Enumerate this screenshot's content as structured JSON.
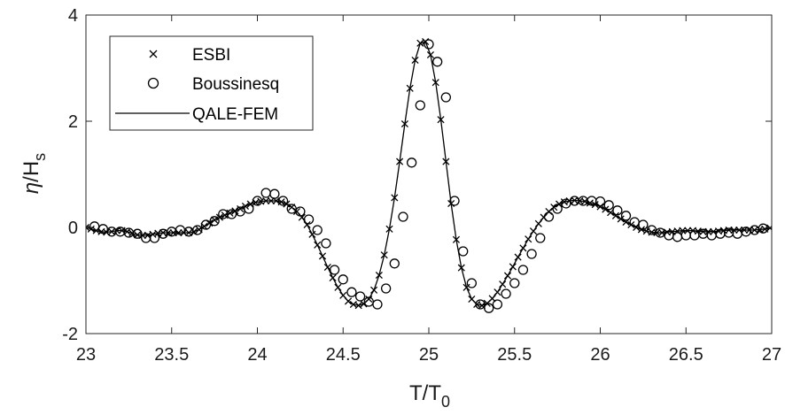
{
  "chart_data": {
    "type": "line",
    "xlabel": "T/T0",
    "xlabel_main": "T/T",
    "xlabel_sub": "0",
    "ylabel": "η/Hs",
    "ylabel_main": "η/H",
    "ylabel_sub": "s",
    "xlim": [
      23,
      27
    ],
    "ylim": [
      -2,
      4
    ],
    "xticks": [
      {
        "value": 23,
        "label": "23"
      },
      {
        "value": 23.5,
        "label": "23.5"
      },
      {
        "value": 24,
        "label": "24"
      },
      {
        "value": 24.5,
        "label": "24.5"
      },
      {
        "value": 25,
        "label": "25"
      },
      {
        "value": 25.5,
        "label": "25.5"
      },
      {
        "value": 26,
        "label": "26"
      },
      {
        "value": 26.5,
        "label": "26.5"
      },
      {
        "value": 27,
        "label": "27"
      }
    ],
    "yticks": [
      {
        "value": -2,
        "label": "-2"
      },
      {
        "value": 0,
        "label": "0"
      },
      {
        "value": 2,
        "label": "2"
      },
      {
        "value": 4,
        "label": "4"
      }
    ],
    "grid": false,
    "legend": "top-left",
    "series": [
      {
        "name": "ESBI",
        "marker": "x",
        "color": "#000000",
        "x": [
          23.0,
          23.03,
          23.06,
          23.09,
          23.12,
          23.15,
          23.18,
          23.21,
          23.24,
          23.27,
          23.3,
          23.33,
          23.36,
          23.39,
          23.42,
          23.45,
          23.48,
          23.51,
          23.54,
          23.57,
          23.6,
          23.63,
          23.66,
          23.69,
          23.72,
          23.75,
          23.78,
          23.81,
          23.84,
          23.87,
          23.9,
          23.93,
          23.96,
          23.99,
          24.02,
          24.05,
          24.08,
          24.11,
          24.14,
          24.17,
          24.2,
          24.23,
          24.26,
          24.29,
          24.32,
          24.35,
          24.38,
          24.41,
          24.44,
          24.47,
          24.5,
          24.53,
          24.56,
          24.59,
          24.62,
          24.65,
          24.68,
          24.71,
          24.74,
          24.77,
          24.8,
          24.83,
          24.86,
          24.89,
          24.92,
          24.95,
          24.98,
          25.01,
          25.04,
          25.07,
          25.1,
          25.13,
          25.16,
          25.19,
          25.22,
          25.25,
          25.28,
          25.31,
          25.34,
          25.37,
          25.4,
          25.43,
          25.46,
          25.49,
          25.52,
          25.55,
          25.58,
          25.61,
          25.64,
          25.67,
          25.7,
          25.73,
          25.76,
          25.79,
          25.82,
          25.85,
          25.88,
          25.91,
          25.94,
          25.97,
          26.0,
          26.03,
          26.06,
          26.09,
          26.12,
          26.15,
          26.18,
          26.21,
          26.24,
          26.27,
          26.3,
          26.33,
          26.36,
          26.39,
          26.42,
          26.45,
          26.48,
          26.51,
          26.54,
          26.57,
          26.6,
          26.63,
          26.66,
          26.69,
          26.72,
          26.75,
          26.78,
          26.81,
          26.84,
          26.87,
          26.9,
          26.93,
          26.96,
          26.99
        ],
        "y": [
          0.0,
          -0.03,
          -0.06,
          -0.08,
          -0.09,
          -0.08,
          -0.06,
          -0.06,
          -0.08,
          -0.11,
          -0.14,
          -0.15,
          -0.15,
          -0.13,
          -0.11,
          -0.1,
          -0.1,
          -0.1,
          -0.1,
          -0.1,
          -0.1,
          -0.08,
          -0.04,
          0.02,
          0.08,
          0.14,
          0.19,
          0.23,
          0.27,
          0.31,
          0.35,
          0.4,
          0.44,
          0.47,
          0.49,
          0.5,
          0.5,
          0.5,
          0.48,
          0.44,
          0.38,
          0.3,
          0.19,
          0.05,
          -0.13,
          -0.33,
          -0.54,
          -0.75,
          -0.95,
          -1.13,
          -1.28,
          -1.39,
          -1.45,
          -1.47,
          -1.44,
          -1.35,
          -1.18,
          -0.9,
          -0.52,
          -0.03,
          0.56,
          1.24,
          1.95,
          2.62,
          3.15,
          3.47,
          3.5,
          3.25,
          2.73,
          2.03,
          1.24,
          0.45,
          -0.23,
          -0.76,
          -1.13,
          -1.35,
          -1.45,
          -1.47,
          -1.43,
          -1.34,
          -1.22,
          -1.07,
          -0.91,
          -0.74,
          -0.56,
          -0.39,
          -0.22,
          -0.07,
          0.07,
          0.19,
          0.3,
          0.38,
          0.44,
          0.48,
          0.5,
          0.51,
          0.5,
          0.49,
          0.46,
          0.43,
          0.39,
          0.34,
          0.28,
          0.22,
          0.16,
          0.1,
          0.05,
          0.0,
          -0.04,
          -0.07,
          -0.09,
          -0.1,
          -0.1,
          -0.09,
          -0.08,
          -0.07,
          -0.06,
          -0.06,
          -0.06,
          -0.07,
          -0.08,
          -0.08,
          -0.08,
          -0.07,
          -0.06,
          -0.05,
          -0.05,
          -0.05,
          -0.05,
          -0.05,
          -0.05,
          -0.04,
          -0.03,
          -0.01
        ]
      },
      {
        "name": "Boussinesq",
        "marker": "o",
        "color": "#000000",
        "x": [
          23.05,
          23.1,
          23.15,
          23.2,
          23.25,
          23.3,
          23.35,
          23.4,
          23.45,
          23.5,
          23.55,
          23.6,
          23.65,
          23.7,
          23.75,
          23.8,
          23.85,
          23.9,
          23.95,
          24.0,
          24.05,
          24.1,
          24.15,
          24.2,
          24.25,
          24.3,
          24.35,
          24.4,
          24.45,
          24.5,
          24.55,
          24.6,
          24.65,
          24.7,
          24.75,
          24.8,
          24.85,
          24.9,
          24.95,
          25.0,
          25.05,
          25.1,
          25.15,
          25.2,
          25.25,
          25.3,
          25.35,
          25.4,
          25.45,
          25.5,
          25.55,
          25.6,
          25.65,
          25.7,
          25.75,
          25.8,
          25.85,
          25.9,
          25.95,
          26.0,
          26.05,
          26.1,
          26.15,
          26.2,
          26.25,
          26.3,
          26.35,
          26.4,
          26.45,
          26.5,
          26.55,
          26.6,
          26.65,
          26.7,
          26.75,
          26.8,
          26.85,
          26.9,
          26.95
        ],
        "y": [
          0.02,
          -0.03,
          -0.08,
          -0.08,
          -0.1,
          -0.12,
          -0.2,
          -0.2,
          -0.12,
          -0.08,
          -0.05,
          -0.08,
          -0.05,
          0.05,
          0.12,
          0.25,
          0.25,
          0.3,
          0.35,
          0.5,
          0.65,
          0.63,
          0.5,
          0.35,
          0.3,
          0.15,
          -0.05,
          -0.3,
          -0.8,
          -0.98,
          -1.22,
          -1.3,
          -1.4,
          -1.45,
          -1.15,
          -0.68,
          0.2,
          1.22,
          2.3,
          3.45,
          3.12,
          2.45,
          0.5,
          -0.45,
          -1.05,
          -1.45,
          -1.52,
          -1.45,
          -1.25,
          -1.05,
          -0.8,
          -0.5,
          -0.2,
          0.2,
          0.35,
          0.45,
          0.5,
          0.5,
          0.5,
          0.49,
          0.42,
          0.32,
          0.22,
          0.1,
          0.05,
          -0.05,
          -0.1,
          -0.15,
          -0.18,
          -0.15,
          -0.15,
          -0.12,
          -0.15,
          -0.12,
          -0.1,
          -0.12,
          -0.08,
          -0.05,
          -0.02
        ]
      },
      {
        "name": "QALE-FEM",
        "marker": "line",
        "color": "#000000",
        "x": [
          23.0,
          23.03,
          23.06,
          23.09,
          23.12,
          23.15,
          23.18,
          23.21,
          23.24,
          23.27,
          23.3,
          23.33,
          23.36,
          23.39,
          23.42,
          23.45,
          23.48,
          23.51,
          23.54,
          23.57,
          23.6,
          23.63,
          23.66,
          23.69,
          23.72,
          23.75,
          23.78,
          23.81,
          23.84,
          23.87,
          23.9,
          23.93,
          23.96,
          23.99,
          24.02,
          24.05,
          24.08,
          24.11,
          24.14,
          24.17,
          24.2,
          24.23,
          24.26,
          24.29,
          24.32,
          24.35,
          24.38,
          24.41,
          24.44,
          24.47,
          24.5,
          24.53,
          24.56,
          24.59,
          24.62,
          24.65,
          24.68,
          24.71,
          24.74,
          24.77,
          24.8,
          24.83,
          24.86,
          24.89,
          24.92,
          24.95,
          24.98,
          25.01,
          25.04,
          25.07,
          25.1,
          25.13,
          25.16,
          25.19,
          25.22,
          25.25,
          25.28,
          25.31,
          25.34,
          25.37,
          25.4,
          25.43,
          25.46,
          25.49,
          25.52,
          25.55,
          25.58,
          25.61,
          25.64,
          25.67,
          25.7,
          25.73,
          25.76,
          25.79,
          25.82,
          25.85,
          25.88,
          25.91,
          25.94,
          25.97,
          26.0,
          26.03,
          26.06,
          26.09,
          26.12,
          26.15,
          26.18,
          26.21,
          26.24,
          26.27,
          26.3,
          26.33,
          26.36,
          26.39,
          26.42,
          26.45,
          26.48,
          26.51,
          26.54,
          26.57,
          26.6,
          26.63,
          26.66,
          26.69,
          26.72,
          26.75,
          26.78,
          26.81,
          26.84,
          26.87,
          26.9,
          26.93,
          26.96,
          26.99,
          27.0
        ],
        "y": [
          0.0,
          -0.03,
          -0.06,
          -0.08,
          -0.09,
          -0.08,
          -0.06,
          -0.06,
          -0.08,
          -0.11,
          -0.14,
          -0.15,
          -0.15,
          -0.13,
          -0.11,
          -0.1,
          -0.1,
          -0.1,
          -0.1,
          -0.1,
          -0.1,
          -0.08,
          -0.04,
          0.02,
          0.08,
          0.14,
          0.19,
          0.23,
          0.27,
          0.31,
          0.35,
          0.4,
          0.44,
          0.47,
          0.49,
          0.5,
          0.5,
          0.5,
          0.48,
          0.44,
          0.38,
          0.3,
          0.19,
          0.05,
          -0.13,
          -0.33,
          -0.54,
          -0.75,
          -0.95,
          -1.13,
          -1.28,
          -1.39,
          -1.45,
          -1.47,
          -1.44,
          -1.35,
          -1.18,
          -0.9,
          -0.52,
          -0.03,
          0.56,
          1.24,
          1.95,
          2.62,
          3.15,
          3.47,
          3.5,
          3.25,
          2.73,
          2.03,
          1.24,
          0.45,
          -0.23,
          -0.76,
          -1.13,
          -1.35,
          -1.45,
          -1.47,
          -1.43,
          -1.34,
          -1.22,
          -1.07,
          -0.91,
          -0.74,
          -0.56,
          -0.39,
          -0.22,
          -0.07,
          0.07,
          0.19,
          0.3,
          0.38,
          0.44,
          0.48,
          0.5,
          0.51,
          0.5,
          0.49,
          0.46,
          0.43,
          0.39,
          0.34,
          0.28,
          0.22,
          0.16,
          0.1,
          0.05,
          0.0,
          -0.04,
          -0.07,
          -0.09,
          -0.1,
          -0.1,
          -0.09,
          -0.08,
          -0.07,
          -0.06,
          -0.06,
          -0.06,
          -0.07,
          -0.08,
          -0.08,
          -0.08,
          -0.07,
          -0.06,
          -0.05,
          -0.05,
          -0.05,
          -0.05,
          -0.05,
          -0.05,
          -0.04,
          -0.03,
          -0.01,
          0.0
        ]
      }
    ]
  }
}
